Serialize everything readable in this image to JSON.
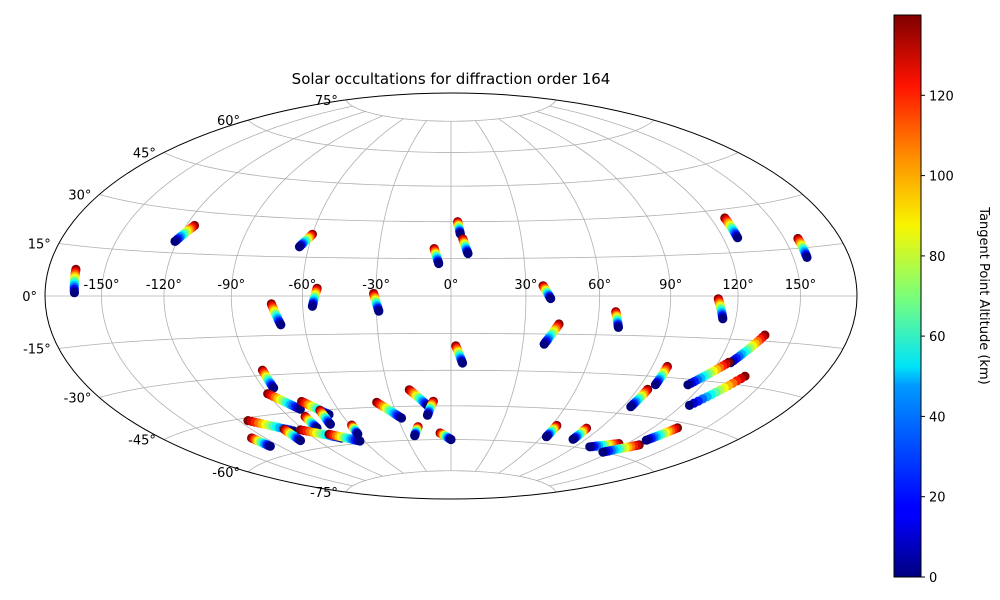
{
  "chart_data": {
    "type": "scatter",
    "projection": "hammer",
    "title": "Solar occultations for diffraction order 164",
    "x_ticks": [
      -150,
      -120,
      -90,
      -60,
      -30,
      0,
      30,
      60,
      90,
      120,
      150
    ],
    "x_tick_labels": [
      "-150°",
      "-120°",
      "-90°",
      "-60°",
      "-30°",
      "0°",
      "30°",
      "60°",
      "90°",
      "120°",
      "150°"
    ],
    "y_ticks": [
      -75,
      -60,
      -45,
      -30,
      -15,
      0,
      15,
      30,
      45,
      60,
      75
    ],
    "y_tick_labels": [
      "-75°",
      "-60°",
      "-45°",
      "-30°",
      "-15°",
      "0°",
      "15°",
      "30°",
      "45°",
      "60°",
      "75°"
    ],
    "grid": true,
    "colorbar": {
      "label": "Tangent Point Altitude (km)",
      "range": [
        0,
        140
      ],
      "ticks": [
        0,
        20,
        40,
        60,
        80,
        100,
        120
      ],
      "tick_labels": [
        "0",
        "20",
        "40",
        "60",
        "80",
        "100",
        "120"
      ],
      "colormap": "jet"
    },
    "tracks": [
      {
        "start": [
          -165,
          8
        ],
        "end": [
          -164,
          1
        ]
      },
      {
        "start": [
          -116,
          25
        ],
        "end": [
          -121,
          19
        ]
      },
      {
        "start": [
          -60,
          24
        ],
        "end": [
          -64,
          19
        ]
      },
      {
        "start": [
          -7,
          19
        ],
        "end": [
          -5,
          13
        ]
      },
      {
        "start": [
          3,
          30
        ],
        "end": [
          4,
          25
        ]
      },
      {
        "start": [
          5,
          23
        ],
        "end": [
          7,
          17
        ]
      },
      {
        "start": [
          127,
          27
        ],
        "end": [
          127,
          20
        ]
      },
      {
        "start": [
          157,
          18
        ],
        "end": [
          157,
          12
        ]
      },
      {
        "start": [
          -73,
          -3
        ],
        "end": [
          -70,
          -11
        ]
      },
      {
        "start": [
          -54,
          3
        ],
        "end": [
          -56,
          -4
        ]
      },
      {
        "start": [
          -31,
          1
        ],
        "end": [
          -29,
          -6
        ]
      },
      {
        "start": [
          37,
          4
        ],
        "end": [
          40,
          -1
        ]
      },
      {
        "start": [
          67,
          -6
        ],
        "end": [
          69,
          -12
        ]
      },
      {
        "start": [
          111,
          -1
        ],
        "end": [
          114,
          -8
        ]
      },
      {
        "start": [
          2,
          -20
        ],
        "end": [
          5,
          -27
        ]
      },
      {
        "start": [
          44,
          -11
        ],
        "end": [
          39,
          -19
        ]
      },
      {
        "start": [
          -85,
          -28
        ],
        "end": [
          -85,
          -35
        ]
      },
      {
        "start": [
          -90,
          -37
        ],
        "end": [
          -80,
          -44
        ]
      },
      {
        "start": [
          -76,
          -41
        ],
        "end": [
          -67,
          -47
        ]
      },
      {
        "start": [
          -70,
          -45
        ],
        "end": [
          -71,
          -51
        ]
      },
      {
        "start": [
          -81,
          -47
        ],
        "end": [
          -81,
          -52
        ]
      },
      {
        "start": [
          -115,
          -46
        ],
        "end": [
          -97,
          -52
        ]
      },
      {
        "start": [
          -101,
          -51
        ],
        "end": [
          -101,
          -56
        ]
      },
      {
        "start": [
          -92,
          -52
        ],
        "end": [
          -73,
          -57
        ]
      },
      {
        "start": [
          -78,
          -55
        ],
        "end": [
          -63,
          -59
        ]
      },
      {
        "start": [
          -59,
          -52
        ],
        "end": [
          -60,
          -56
        ]
      },
      {
        "start": [
          -38,
          -43
        ],
        "end": [
          -28,
          -50
        ]
      },
      {
        "start": [
          -20,
          -38
        ],
        "end": [
          -12,
          -45
        ]
      },
      {
        "start": [
          -9,
          -43
        ],
        "end": [
          -13,
          -49
        ]
      },
      {
        "start": [
          -20,
          -54
        ],
        "end": [
          -24,
          -58
        ]
      },
      {
        "start": [
          -7,
          -57
        ],
        "end": [
          0,
          -60
        ]
      },
      {
        "start": [
          -128,
          -52
        ],
        "end": [
          -126,
          -56
        ]
      },
      {
        "start": [
          63,
          -52
        ],
        "end": [
          63,
          -57
        ]
      },
      {
        "start": [
          82,
          -52
        ],
        "end": [
          82,
          -57
        ]
      },
      {
        "start": [
          97,
          -26
        ],
        "end": [
          97,
          -33
        ]
      },
      {
        "start": [
          95,
          -35
        ],
        "end": [
          94,
          -42
        ]
      },
      {
        "start": [
          115,
          -56
        ],
        "end": [
          100,
          -59
        ]
      },
      {
        "start": [
          129,
          -55
        ],
        "end": [
          115,
          -60
        ]
      },
      {
        "start": [
          134,
          -47
        ],
        "end": [
          128,
          -53
        ]
      },
      {
        "start": [
          136,
          -13
        ],
        "end": [
          126,
          -23
        ]
      },
      {
        "start": [
          125,
          -23
        ],
        "end": [
          113,
          -32
        ]
      },
      {
        "start": [
          138,
          -27
        ],
        "end": [
          124,
          -39
        ]
      }
    ]
  }
}
